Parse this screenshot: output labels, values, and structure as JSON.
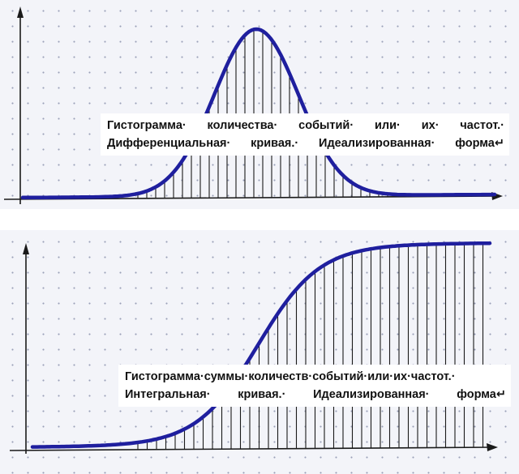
{
  "panels": [
    {
      "id": "top",
      "kind": "differential",
      "caption_line1": "Гистограмма· количества· событий· или· их· частот.·",
      "caption_line2": "Дифференциальная· кривая.· Идеализированная· форма↵"
    },
    {
      "id": "bottom",
      "kind": "integral",
      "caption_line1": "Гистограмма·суммы·количеств·событий·или·их·частот.·",
      "caption_line2": "Интегральная· кривая.· Идеализированная· форма↵"
    }
  ],
  "colors": {
    "curve": "#1f1f9e",
    "bars": "#1a1a1a",
    "axes": "#1a1a1a",
    "grid_dots": "#9aa0b8"
  }
}
